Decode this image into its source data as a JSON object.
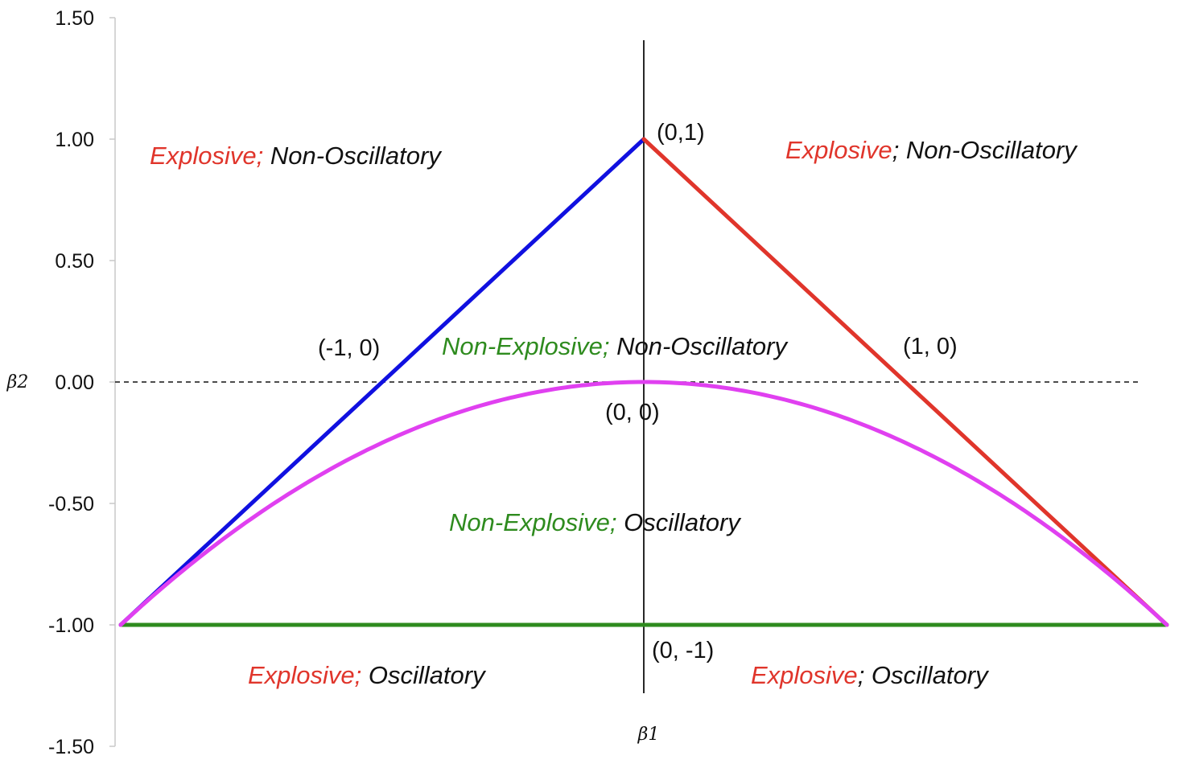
{
  "chart_data": {
    "type": "line",
    "title": "",
    "xlabel": "β1",
    "ylabel": "β2",
    "ylim": [
      -1.5,
      1.5
    ],
    "xlim": [
      -2,
      2
    ],
    "y_ticks": [
      "1.50",
      "1.00",
      "0.50",
      "0.00",
      "-0.50",
      "-1.00",
      "-1.50"
    ],
    "grid": false,
    "series": [
      {
        "color": "#1010e0",
        "x": [
          -2,
          0
        ],
        "y": [
          -1,
          1
        ]
      },
      {
        "color": "#e0352b",
        "x": [
          0,
          2
        ],
        "y": [
          1,
          -1
        ]
      },
      {
        "color": "#2e8b1e",
        "x": [
          -2,
          2
        ],
        "y": [
          -1,
          -1
        ]
      },
      {
        "color": "#e040f0",
        "x": [
          -2,
          -1.5,
          -1,
          -0.5,
          0,
          0.5,
          1,
          1.5,
          2
        ],
        "y": [
          -1,
          -0.5625,
          -0.25,
          -0.0625,
          0,
          -0.0625,
          -0.25,
          -0.5625,
          -1
        ]
      }
    ],
    "reference_lines": [
      {
        "orientation": "horizontal",
        "value": 0,
        "style": "dashed"
      },
      {
        "orientation": "vertical",
        "value": 0,
        "style": "solid"
      }
    ],
    "point_labels": [
      {
        "text": "(0,1)",
        "x": 0,
        "y": 1
      },
      {
        "text": "(-1, 0)",
        "x": -1,
        "y": 0
      },
      {
        "text": "(1, 0)",
        "x": 1,
        "y": 0
      },
      {
        "text": "(0, 0)",
        "x": 0,
        "y": 0
      },
      {
        "text": "(0, -1)",
        "x": 0,
        "y": -1
      }
    ],
    "region_labels": [
      {
        "part1": "Explosive;",
        "part2": " Non-Oscillatory",
        "color1": "#e0352b"
      },
      {
        "part1": "Explosive",
        "part2": "; Non-Oscillatory",
        "color1": "#e0352b"
      },
      {
        "part1": "Non-Explosive;",
        "part2": " Non-Oscillatory",
        "color1": "#2e8b1e"
      },
      {
        "part1": "Non-Explosive;",
        "part2": " Oscillatory",
        "color1": "#2e8b1e"
      },
      {
        "part1": "Explosive;",
        "part2": " Oscillatory",
        "color1": "#e0352b"
      },
      {
        "part1": "Explosive",
        "part2": "; Oscillatory",
        "color1": "#e0352b"
      }
    ]
  }
}
